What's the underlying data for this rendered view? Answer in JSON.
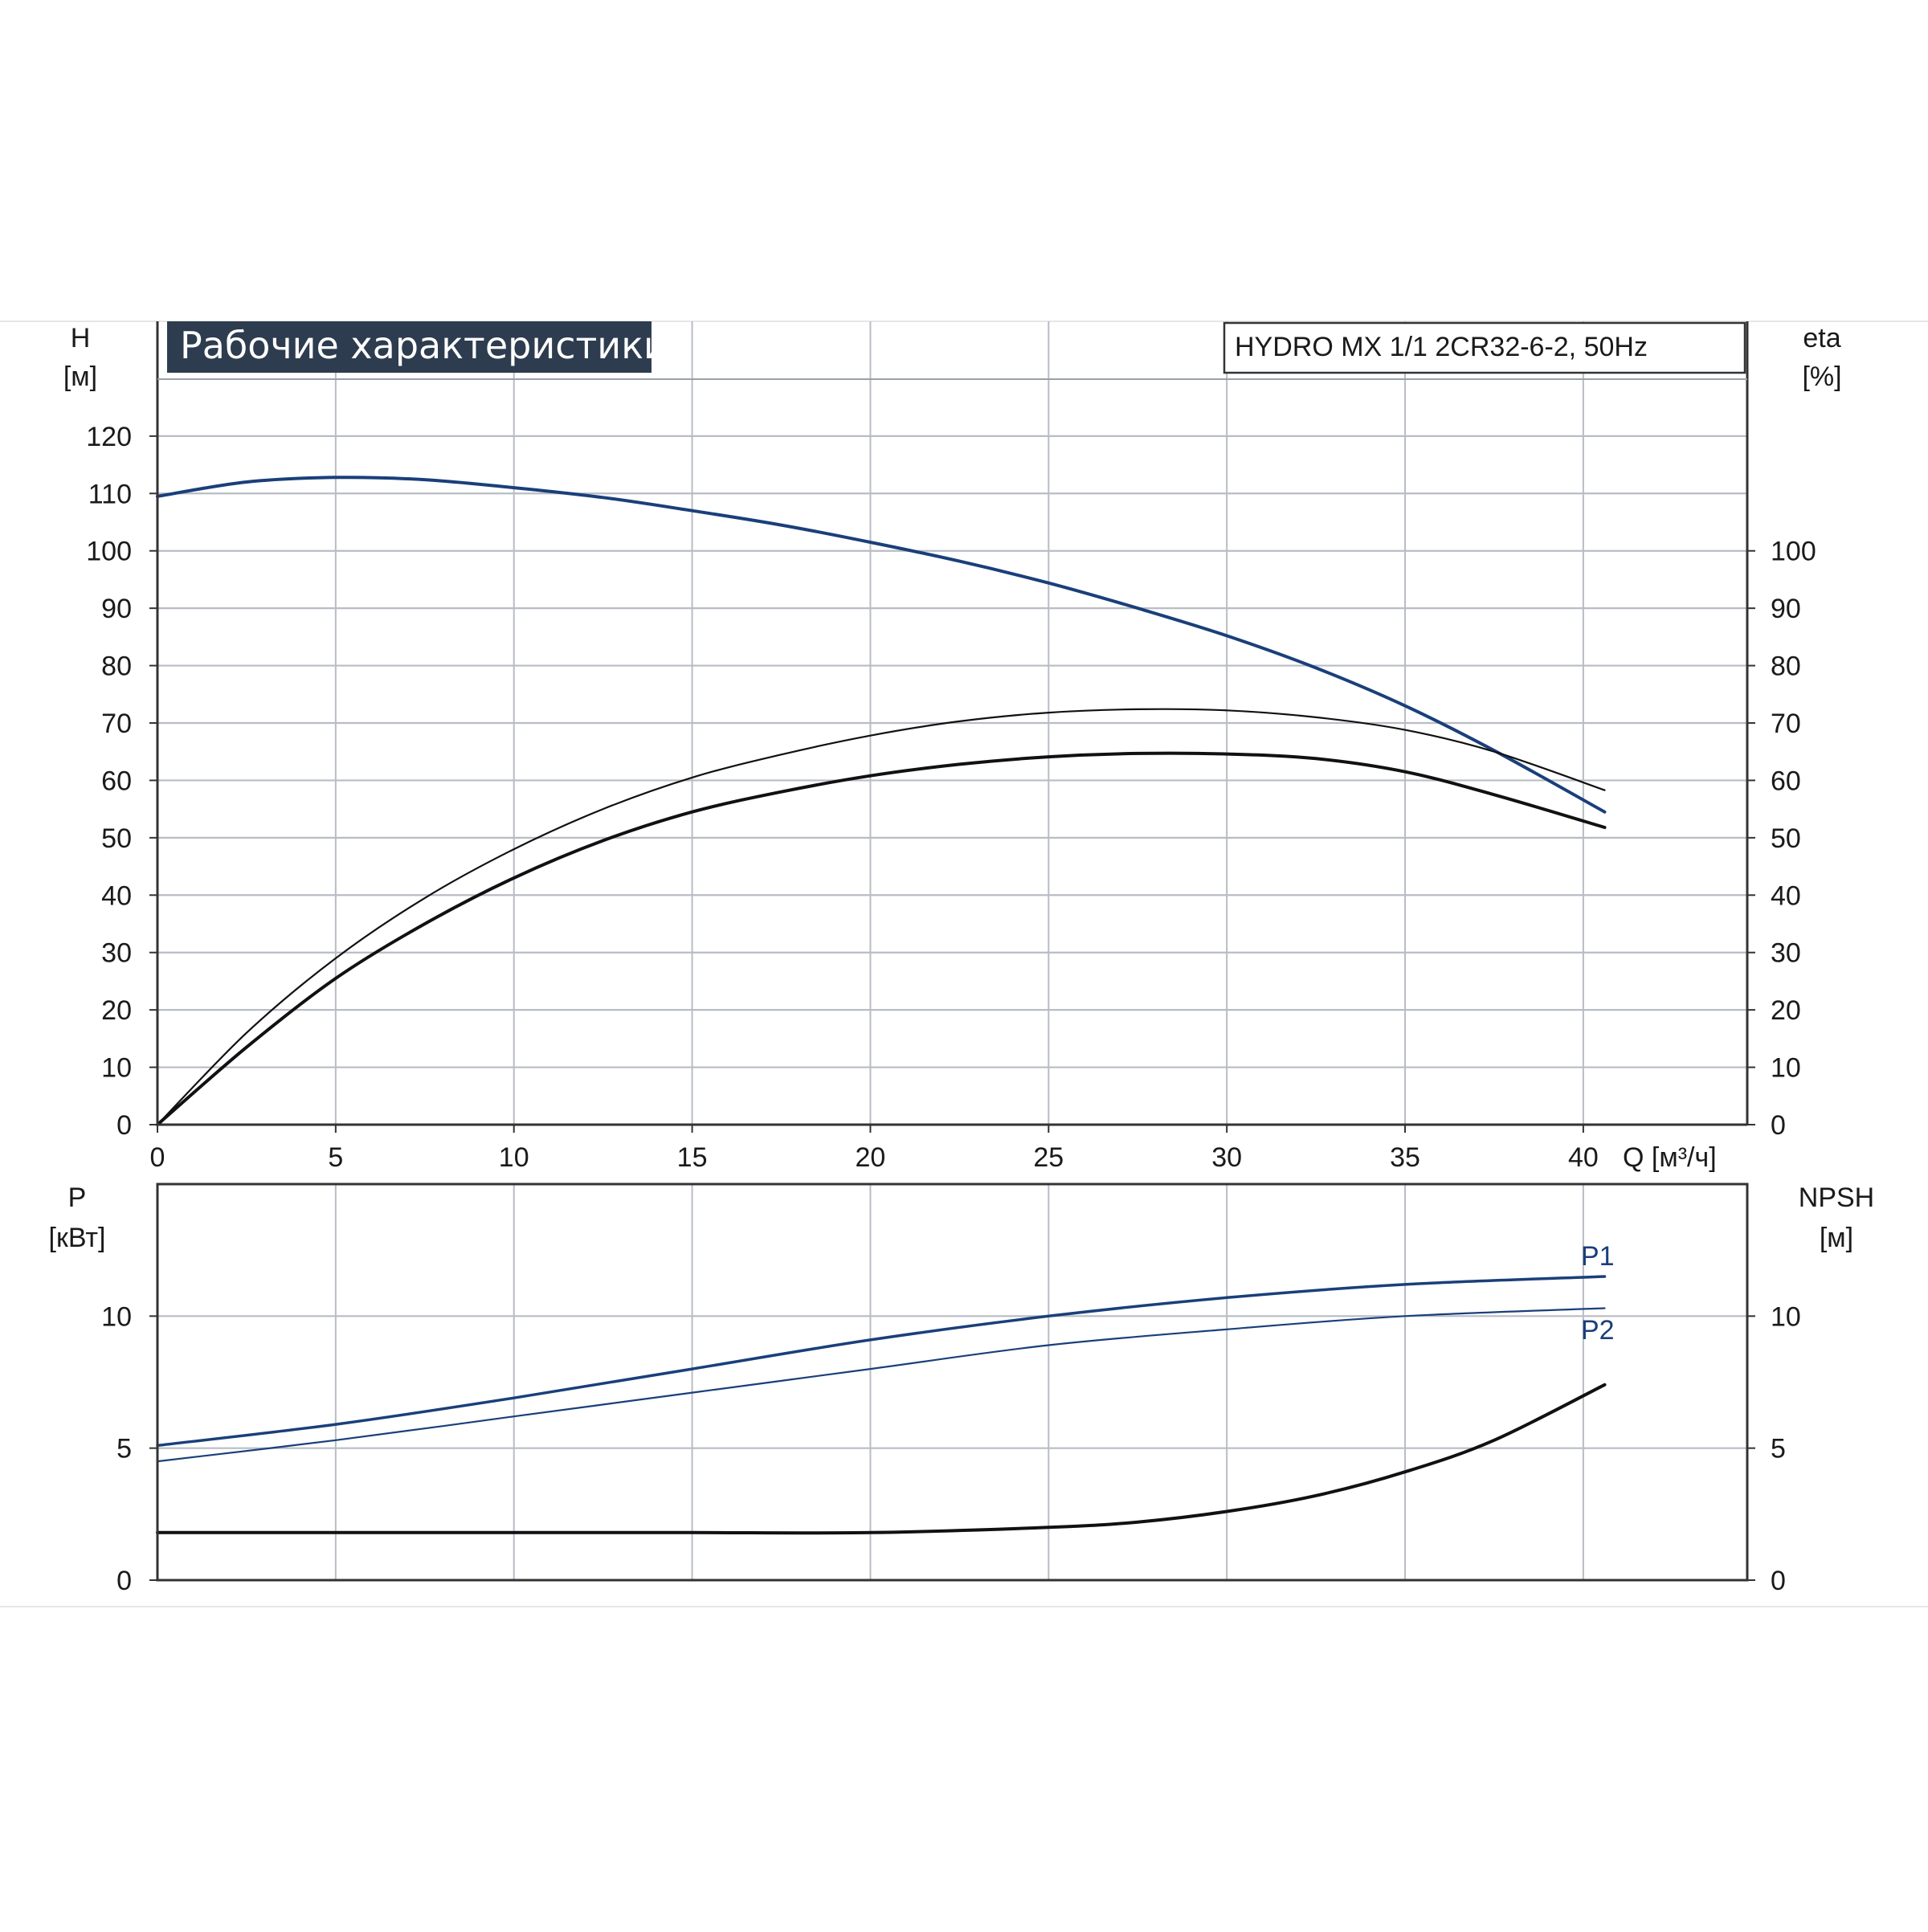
{
  "title": "Рабочие характеристики",
  "model": "HYDRO MX 1/1 2CR32-6-2, 50Hz",
  "colors": {
    "title_bg": "#2e3c4f",
    "blue": "#1a3f7a",
    "black": "#111111",
    "grid": "#b8bcc4"
  },
  "chart_data": [
    {
      "type": "line",
      "panel": "top",
      "title": "Рабочие характеристики",
      "x_label": "Q [м³/ч]",
      "x_ticks": [
        0,
        5,
        10,
        15,
        20,
        25,
        30,
        35,
        40
      ],
      "xlim": [
        0,
        44.6
      ],
      "y_left_label": [
        "H",
        "[м]"
      ],
      "y_left_ticks": [
        0,
        10,
        20,
        30,
        40,
        50,
        60,
        70,
        80,
        90,
        100,
        110,
        120
      ],
      "y_right_label": [
        "eta",
        "[%]"
      ],
      "y_right_ticks": [
        0,
        10,
        20,
        30,
        40,
        50,
        60,
        70,
        80,
        90,
        100
      ],
      "ylim": [
        0,
        140
      ],
      "grid": true,
      "series": [
        {
          "key": "H",
          "axis": "left",
          "color": "#1a3f7a",
          "width": 4,
          "x": [
            0,
            2.5,
            5,
            7.5,
            10,
            12.5,
            15,
            17.5,
            20,
            22.5,
            25,
            27.5,
            30,
            32.5,
            35,
            37.5,
            40.6
          ],
          "y": [
            109.5,
            112,
            112.8,
            112.4,
            111,
            109.3,
            107,
            104.5,
            101.5,
            98.2,
            94.4,
            90,
            85.2,
            79.6,
            73,
            65.2,
            54.5
          ]
        },
        {
          "key": "eta_thin",
          "axis": "right",
          "color": "#111111",
          "width": 2.2,
          "x": [
            0,
            2.5,
            5,
            7.5,
            10,
            12.5,
            15,
            17.5,
            20,
            22.5,
            25,
            27.5,
            30,
            32.5,
            35,
            37.5,
            40.6
          ],
          "y": [
            0,
            16,
            29,
            39.5,
            48,
            55,
            60.5,
            64.5,
            67.8,
            70.3,
            71.8,
            72.4,
            72.2,
            71,
            68.8,
            65,
            58.3
          ]
        },
        {
          "key": "eta_thick",
          "axis": "right",
          "color": "#111111",
          "width": 4,
          "x": [
            0,
            2.5,
            5,
            7.5,
            10,
            12.5,
            15,
            17.5,
            20,
            22.5,
            25,
            27.5,
            30,
            32.5,
            35,
            37.5,
            40.6
          ],
          "y": [
            0,
            13.5,
            25.5,
            35,
            43,
            49.5,
            54.5,
            58,
            60.8,
            62.8,
            64.1,
            64.7,
            64.6,
            63.8,
            61.5,
            57.5,
            51.8
          ]
        }
      ]
    },
    {
      "type": "line",
      "panel": "bottom",
      "y_left_label": [
        "P",
        "[кВт]"
      ],
      "y_left_ticks": [
        0,
        5,
        10
      ],
      "y_right_label": [
        "NPSH",
        "[м]"
      ],
      "y_right_ticks": [
        0,
        5,
        10
      ],
      "xlim": [
        0,
        44.6
      ],
      "ylim": [
        0,
        15
      ],
      "grid": true,
      "series": [
        {
          "key": "P1",
          "name": "P1",
          "axis": "left",
          "color": "#1a3f7a",
          "width": 3.5,
          "x": [
            0,
            5,
            10,
            15,
            20,
            25,
            30,
            35,
            40.6
          ],
          "y": [
            5.1,
            5.9,
            6.9,
            8.0,
            9.1,
            10.0,
            10.7,
            11.2,
            11.5
          ]
        },
        {
          "key": "P2",
          "name": "P2",
          "axis": "left",
          "color": "#1a3f7a",
          "width": 2.2,
          "x": [
            0,
            5,
            10,
            15,
            20,
            25,
            30,
            35,
            40.6
          ],
          "y": [
            4.5,
            5.3,
            6.2,
            7.1,
            8.0,
            8.9,
            9.5,
            10.0,
            10.3
          ]
        },
        {
          "key": "NPSH",
          "axis": "right",
          "color": "#111111",
          "width": 4,
          "x": [
            0,
            5,
            10,
            15,
            20,
            25,
            27.5,
            30,
            32.5,
            35,
            37.5,
            40.6
          ],
          "y": [
            1.8,
            1.8,
            1.8,
            1.8,
            1.8,
            2.0,
            2.2,
            2.6,
            3.2,
            4.1,
            5.3,
            7.4
          ]
        }
      ]
    }
  ]
}
